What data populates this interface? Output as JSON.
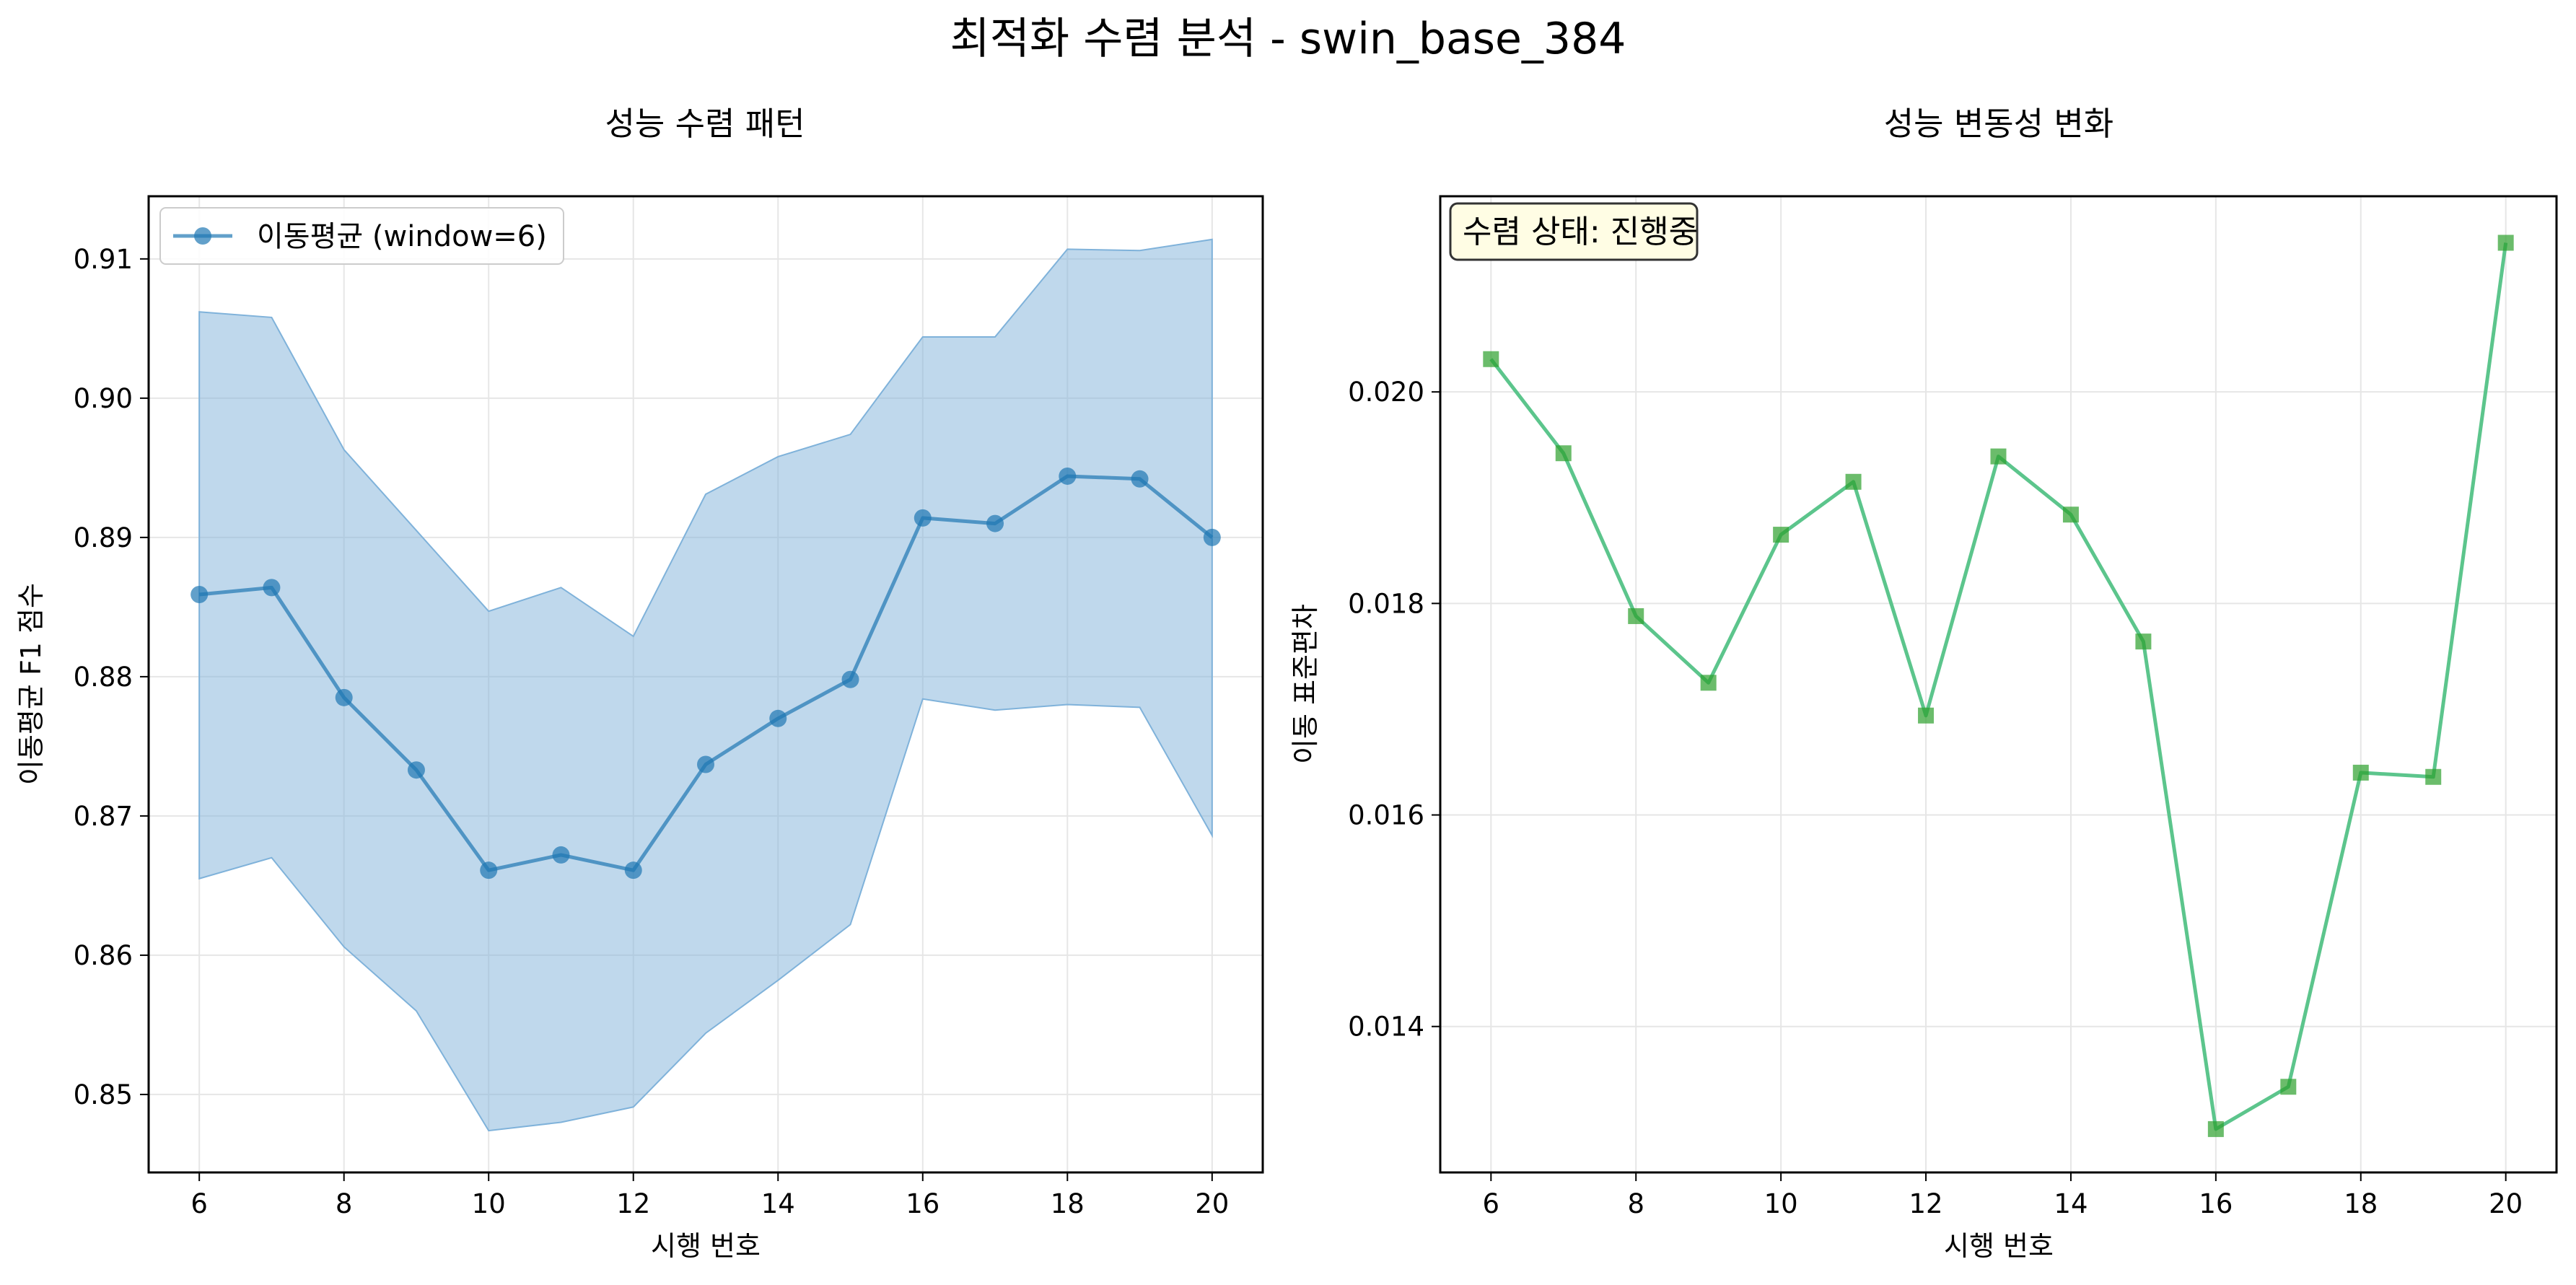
{
  "figure": {
    "title": "최적화 수렴 분석 - swin_base_384"
  },
  "chart_data": [
    {
      "type": "line",
      "title": "성능 수렴 패턴",
      "xlabel": "시행 번호",
      "ylabel": "이동평균 F1 점수",
      "xlim": [
        5.3,
        20.7
      ],
      "ylim": [
        0.8444,
        0.9145
      ],
      "xticks": [
        6,
        8,
        10,
        12,
        14,
        16,
        18,
        20
      ],
      "yticks": [
        0.85,
        0.86,
        0.87,
        0.88,
        0.89,
        0.9,
        0.91
      ],
      "tick_format_y": 2,
      "grid": true,
      "legend_position": "top-left",
      "x": [
        6,
        7,
        8,
        9,
        10,
        11,
        12,
        13,
        14,
        15,
        16,
        17,
        18,
        19,
        20
      ],
      "series": [
        {
          "name": "이동평균 (window=6)",
          "values": [
            0.8859,
            0.8864,
            0.8785,
            0.8733,
            0.8661,
            0.8672,
            0.8661,
            0.8737,
            0.877,
            0.8798,
            0.8914,
            0.891,
            0.8944,
            0.8942,
            0.89
          ],
          "color": "#1f77b4",
          "marker": "circle"
        }
      ],
      "band": {
        "upper": [
          0.9062,
          0.9058,
          0.8963,
          0.8905,
          0.8847,
          0.8864,
          0.8829,
          0.8931,
          0.8958,
          0.8974,
          0.9044,
          0.9044,
          0.9107,
          0.9106,
          0.9114
        ],
        "lower": [
          0.8655,
          0.867,
          0.8606,
          0.856,
          0.8474,
          0.848,
          0.8491,
          0.8544,
          0.8582,
          0.8622,
          0.8784,
          0.8776,
          0.878,
          0.8778,
          0.8686
        ],
        "color": "#7fb2da"
      }
    },
    {
      "type": "line",
      "title": "성능 변동성 변화",
      "xlabel": "시행 번호",
      "ylabel": "이동 표준편차",
      "xlim": [
        5.3,
        20.7
      ],
      "ylim": [
        0.01262,
        0.02185
      ],
      "xticks": [
        6,
        8,
        10,
        12,
        14,
        16,
        18,
        20
      ],
      "yticks": [
        0.014,
        0.016,
        0.018,
        0.02
      ],
      "tick_format_y": 3,
      "grid": true,
      "annotation": "수렴 상태: 진행중",
      "x": [
        6,
        7,
        8,
        9,
        10,
        11,
        12,
        13,
        14,
        15,
        16,
        17,
        18,
        19,
        20
      ],
      "series": [
        {
          "values": [
            0.02031,
            0.01942,
            0.01788,
            0.01725,
            0.01865,
            0.01915,
            0.01694,
            0.01939,
            0.01884,
            0.01764,
            0.01303,
            0.01343,
            0.0164,
            0.01636,
            0.02141
          ],
          "color": "#2ca02c",
          "line_color": "#5cc58c",
          "marker": "square"
        }
      ]
    }
  ]
}
